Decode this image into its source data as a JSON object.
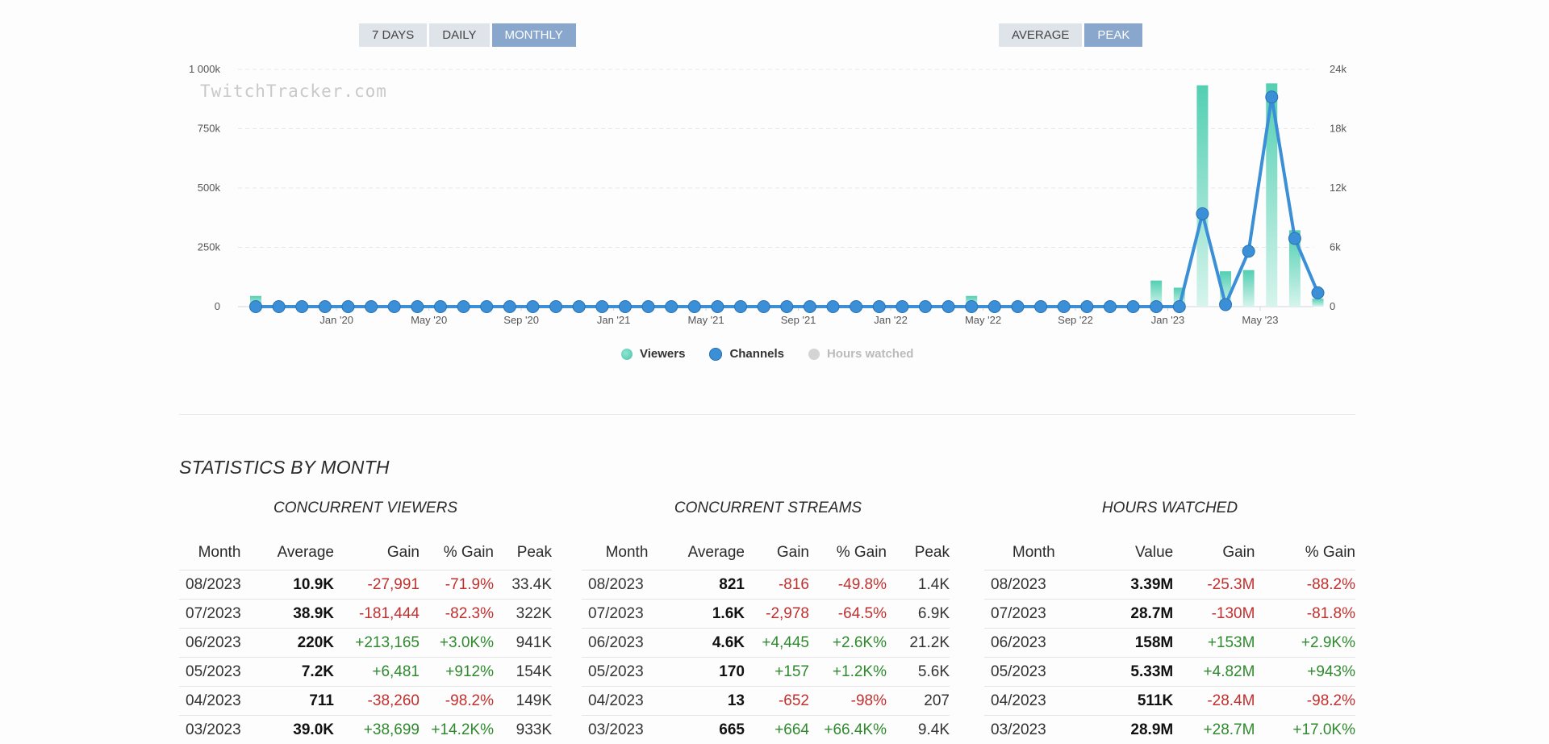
{
  "controls": {
    "range_buttons": [
      {
        "label": "7 DAYS",
        "active": false
      },
      {
        "label": "DAILY",
        "active": false
      },
      {
        "label": "MONTHLY",
        "active": true
      }
    ],
    "mode_buttons": [
      {
        "label": "AVERAGE",
        "active": false
      },
      {
        "label": "PEAK",
        "active": true
      }
    ]
  },
  "chart": {
    "watermark": "TwitchTracker.com",
    "legend": [
      {
        "label": "Viewers",
        "color": "#5fd3bb",
        "active": true
      },
      {
        "label": "Channels",
        "color": "#3a8fd6",
        "active": true
      },
      {
        "label": "Hours watched",
        "color": "#cccccc",
        "active": false
      }
    ]
  },
  "chart_data": {
    "type": "bar",
    "y_left_ticks": [
      "0",
      "250k",
      "500k",
      "750k",
      "1 000k"
    ],
    "y_right_ticks": [
      "0",
      "6k",
      "12k",
      "18k",
      "24k"
    ],
    "ylim_left": [
      0,
      1000000
    ],
    "ylim_right": [
      0,
      24000
    ],
    "x_tick_labels": [
      "Jan '20",
      "May '20",
      "Sep '20",
      "Jan '21",
      "May '21",
      "Sep '21",
      "Jan '22",
      "May '22",
      "Sep '22",
      "Jan '23",
      "May '23"
    ],
    "x": [
      "2019-10",
      "2019-11",
      "2019-12",
      "2020-01",
      "2020-02",
      "2020-03",
      "2020-04",
      "2020-05",
      "2020-06",
      "2020-07",
      "2020-08",
      "2020-09",
      "2020-10",
      "2020-11",
      "2020-12",
      "2021-01",
      "2021-02",
      "2021-03",
      "2021-04",
      "2021-05",
      "2021-06",
      "2021-07",
      "2021-08",
      "2021-09",
      "2021-10",
      "2021-11",
      "2021-12",
      "2022-01",
      "2022-02",
      "2022-03",
      "2022-04",
      "2022-05",
      "2022-06",
      "2022-07",
      "2022-08",
      "2022-09",
      "2022-10",
      "2022-11",
      "2022-12",
      "2023-01",
      "2023-02",
      "2023-03",
      "2023-04",
      "2023-05",
      "2023-06",
      "2023-07",
      "2023-08"
    ],
    "series": [
      {
        "name": "Viewers",
        "axis": "left",
        "kind": "bar",
        "color": "#5fd3bb",
        "values": [
          45000,
          5000,
          3000,
          2000,
          2000,
          2000,
          2000,
          2000,
          2000,
          2000,
          2000,
          2000,
          2000,
          2000,
          2000,
          2000,
          2000,
          2000,
          2000,
          2000,
          2000,
          2000,
          2000,
          2000,
          2000,
          2000,
          2000,
          2000,
          2000,
          2000,
          2000,
          45000,
          3000,
          2000,
          2000,
          2000,
          2000,
          2000,
          2000,
          110000,
          80000,
          933000,
          149000,
          154000,
          941000,
          322000,
          33400
        ]
      },
      {
        "name": "Channels",
        "axis": "right",
        "kind": "line",
        "color": "#3a8fd6",
        "values": [
          0,
          0,
          0,
          0,
          0,
          0,
          0,
          0,
          0,
          0,
          0,
          0,
          0,
          0,
          0,
          0,
          0,
          0,
          0,
          0,
          0,
          0,
          0,
          0,
          0,
          0,
          0,
          0,
          0,
          0,
          0,
          0,
          0,
          0,
          0,
          0,
          0,
          0,
          0,
          0,
          0,
          9400,
          207,
          5600,
          21200,
          6900,
          1400
        ]
      }
    ],
    "grid": true
  },
  "stats": {
    "title": "STATISTICS BY MONTH",
    "viewers": {
      "title": "CONCURRENT VIEWERS",
      "headers": [
        "Month",
        "Average",
        "Gain",
        "% Gain",
        "Peak"
      ],
      "rows": [
        [
          "08/2023",
          "10.9K",
          "-27,991",
          "-71.9%",
          "33.4K"
        ],
        [
          "07/2023",
          "38.9K",
          "-181,444",
          "-82.3%",
          "322K"
        ],
        [
          "06/2023",
          "220K",
          "+213,165",
          "+3.0K%",
          "941K"
        ],
        [
          "05/2023",
          "7.2K",
          "+6,481",
          "+912%",
          "154K"
        ],
        [
          "04/2023",
          "711",
          "-38,260",
          "-98.2%",
          "149K"
        ],
        [
          "03/2023",
          "39.0K",
          "+38,699",
          "+14.2K%",
          "933K"
        ]
      ]
    },
    "streams": {
      "title": "CONCURRENT STREAMS",
      "headers": [
        "Month",
        "Average",
        "Gain",
        "% Gain",
        "Peak"
      ],
      "rows": [
        [
          "08/2023",
          "821",
          "-816",
          "-49.8%",
          "1.4K"
        ],
        [
          "07/2023",
          "1.6K",
          "-2,978",
          "-64.5%",
          "6.9K"
        ],
        [
          "06/2023",
          "4.6K",
          "+4,445",
          "+2.6K%",
          "21.2K"
        ],
        [
          "05/2023",
          "170",
          "+157",
          "+1.2K%",
          "5.6K"
        ],
        [
          "04/2023",
          "13",
          "-652",
          "-98%",
          "207"
        ],
        [
          "03/2023",
          "665",
          "+664",
          "+66.4K%",
          "9.4K"
        ]
      ]
    },
    "hours": {
      "title": "HOURS WATCHED",
      "headers": [
        "Month",
        "Value",
        "Gain",
        "% Gain"
      ],
      "rows": [
        [
          "08/2023",
          "3.39M",
          "-25.3M",
          "-88.2%"
        ],
        [
          "07/2023",
          "28.7M",
          "-130M",
          "-81.8%"
        ],
        [
          "06/2023",
          "158M",
          "+153M",
          "+2.9K%"
        ],
        [
          "05/2023",
          "5.33M",
          "+4.82M",
          "+943%"
        ],
        [
          "04/2023",
          "511K",
          "-28.4M",
          "-98.2%"
        ],
        [
          "03/2023",
          "28.9M",
          "+28.7M",
          "+17.0K%"
        ]
      ]
    }
  }
}
